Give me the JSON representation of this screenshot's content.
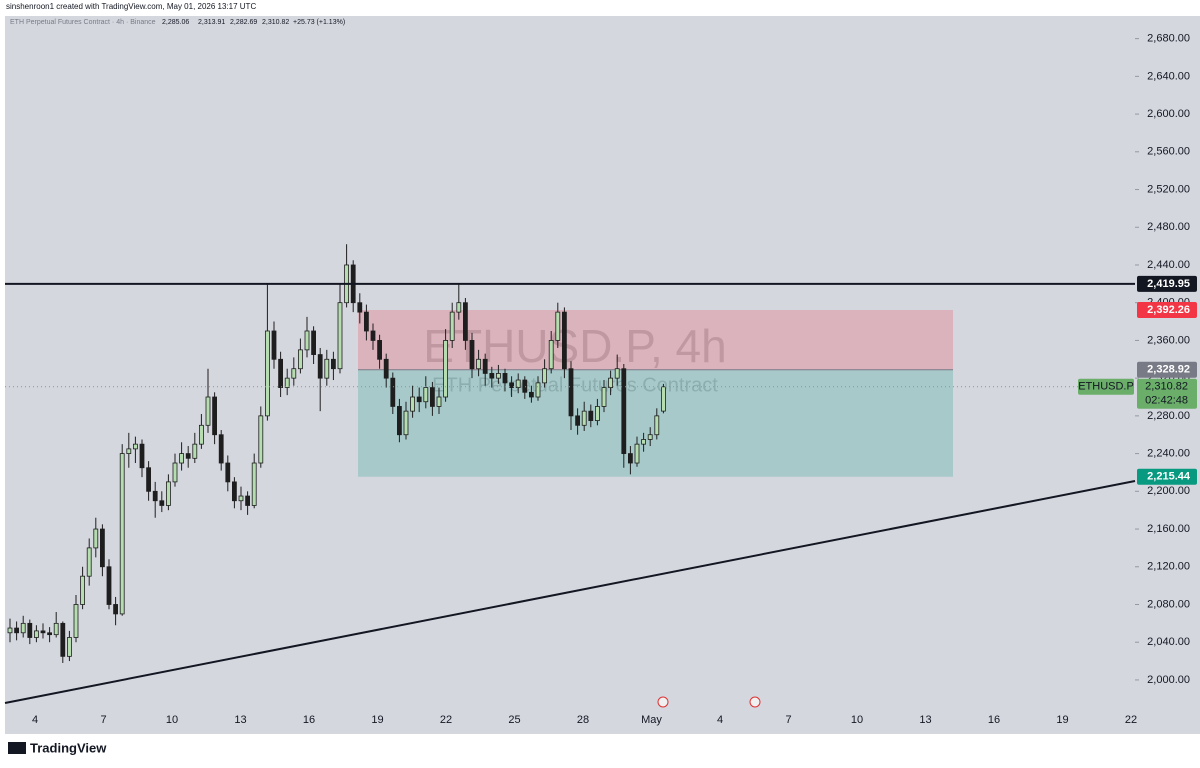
{
  "chart_data": {
    "type": "candlestick",
    "credit": "sinshenroon1 created with TradingView.com, May 01, 2026 13:17 UTC",
    "legend": {
      "name": "ETH Perpetual Futures Contract · 4h · Binance",
      "o": "2,285.06",
      "h": "2,313.91",
      "l": "2,282.69",
      "c": "2,310.82",
      "change": "+25.73 (+1.13%)"
    },
    "watermark": {
      "symbol": "ETHUSD.P, 4h",
      "description": "ETH Perpetual Futures Contract"
    },
    "brand": "TradingView",
    "ylim": [
      1966,
      2704
    ],
    "yticks": [
      {
        "value": 2000,
        "label": "2,000.00"
      },
      {
        "value": 2040,
        "label": "2,040.00"
      },
      {
        "value": 2080,
        "label": "2,080.00"
      },
      {
        "value": 2120,
        "label": "2,120.00"
      },
      {
        "value": 2160,
        "label": "2,160.00"
      },
      {
        "value": 2200,
        "label": "2,200.00"
      },
      {
        "value": 2240,
        "label": "2,240.00"
      },
      {
        "value": 2280,
        "label": "2,280.00"
      },
      {
        "value": 2320,
        "label": "2,320.00"
      },
      {
        "value": 2360,
        "label": "2,360.00"
      },
      {
        "value": 2400,
        "label": "2,400.00"
      },
      {
        "value": 2440,
        "label": "2,440.00"
      },
      {
        "value": 2480,
        "label": "2,480.00"
      },
      {
        "value": 2520,
        "label": "2,520.00"
      },
      {
        "value": 2560,
        "label": "2,560.00"
      },
      {
        "value": 2600,
        "label": "2,600.00"
      },
      {
        "value": 2640,
        "label": "2,640.00"
      },
      {
        "value": 2680,
        "label": "2,680.00"
      }
    ],
    "x_labels": [
      "4",
      "7",
      "10",
      "13",
      "16",
      "19",
      "22",
      "25",
      "28",
      "May",
      "4",
      "7",
      "10",
      "13",
      "16",
      "19",
      "22"
    ],
    "up_color": "#b5ddb0",
    "down_color": "#1e1e1e",
    "candles": [
      [
        2050,
        2065,
        2040,
        2055
      ],
      [
        2055,
        2062,
        2042,
        2050
      ],
      [
        2050,
        2068,
        2045,
        2060
      ],
      [
        2060,
        2064,
        2038,
        2045
      ],
      [
        2045,
        2058,
        2040,
        2052
      ],
      [
        2052,
        2060,
        2044,
        2050
      ],
      [
        2050,
        2056,
        2040,
        2048
      ],
      [
        2048,
        2072,
        2045,
        2060
      ],
      [
        2060,
        2062,
        2018,
        2025
      ],
      [
        2025,
        2052,
        2020,
        2045
      ],
      [
        2045,
        2090,
        2040,
        2080
      ],
      [
        2080,
        2120,
        2075,
        2110
      ],
      [
        2110,
        2150,
        2100,
        2140
      ],
      [
        2140,
        2172,
        2130,
        2160
      ],
      [
        2160,
        2165,
        2110,
        2120
      ],
      [
        2120,
        2128,
        2075,
        2080
      ],
      [
        2080,
        2088,
        2058,
        2070
      ],
      [
        2070,
        2250,
        2068,
        2240
      ],
      [
        2240,
        2262,
        2225,
        2245
      ],
      [
        2245,
        2258,
        2230,
        2250
      ],
      [
        2250,
        2255,
        2215,
        2225
      ],
      [
        2225,
        2232,
        2190,
        2200
      ],
      [
        2200,
        2210,
        2172,
        2190
      ],
      [
        2190,
        2200,
        2178,
        2185
      ],
      [
        2185,
        2218,
        2180,
        2210
      ],
      [
        2210,
        2240,
        2205,
        2230
      ],
      [
        2230,
        2252,
        2222,
        2240
      ],
      [
        2240,
        2248,
        2225,
        2235
      ],
      [
        2235,
        2262,
        2230,
        2250
      ],
      [
        2250,
        2282,
        2245,
        2270
      ],
      [
        2270,
        2330,
        2262,
        2300
      ],
      [
        2300,
        2305,
        2250,
        2260
      ],
      [
        2260,
        2265,
        2222,
        2230
      ],
      [
        2230,
        2238,
        2200,
        2210
      ],
      [
        2210,
        2215,
        2182,
        2190
      ],
      [
        2190,
        2205,
        2180,
        2195
      ],
      [
        2195,
        2200,
        2175,
        2185
      ],
      [
        2185,
        2240,
        2182,
        2230
      ],
      [
        2230,
        2290,
        2225,
        2280
      ],
      [
        2280,
        2420,
        2275,
        2370
      ],
      [
        2370,
        2380,
        2330,
        2340
      ],
      [
        2340,
        2348,
        2300,
        2310
      ],
      [
        2310,
        2330,
        2302,
        2320
      ],
      [
        2320,
        2342,
        2312,
        2330
      ],
      [
        2330,
        2362,
        2325,
        2350
      ],
      [
        2350,
        2385,
        2342,
        2370
      ],
      [
        2370,
        2375,
        2335,
        2345
      ],
      [
        2345,
        2352,
        2285,
        2320
      ],
      [
        2320,
        2350,
        2312,
        2340
      ],
      [
        2340,
        2348,
        2318,
        2330
      ],
      [
        2330,
        2420,
        2325,
        2400
      ],
      [
        2400,
        2462,
        2395,
        2440
      ],
      [
        2440,
        2445,
        2390,
        2400
      ],
      [
        2400,
        2410,
        2378,
        2390
      ],
      [
        2390,
        2398,
        2360,
        2370
      ],
      [
        2370,
        2378,
        2350,
        2360
      ],
      [
        2360,
        2366,
        2330,
        2340
      ],
      [
        2340,
        2346,
        2310,
        2320
      ],
      [
        2320,
        2326,
        2282,
        2290
      ],
      [
        2290,
        2298,
        2252,
        2260
      ],
      [
        2260,
        2295,
        2255,
        2285
      ],
      [
        2285,
        2312,
        2278,
        2300
      ],
      [
        2300,
        2310,
        2284,
        2295
      ],
      [
        2295,
        2322,
        2288,
        2310
      ],
      [
        2310,
        2316,
        2280,
        2290
      ],
      [
        2290,
        2310,
        2282,
        2300
      ],
      [
        2300,
        2372,
        2295,
        2360
      ],
      [
        2360,
        2400,
        2352,
        2390
      ],
      [
        2390,
        2420,
        2382,
        2400
      ],
      [
        2400,
        2405,
        2350,
        2360
      ],
      [
        2360,
        2368,
        2320,
        2330
      ],
      [
        2330,
        2350,
        2322,
        2340
      ],
      [
        2340,
        2346,
        2312,
        2325
      ],
      [
        2325,
        2332,
        2310,
        2320
      ],
      [
        2320,
        2334,
        2314,
        2325
      ],
      [
        2325,
        2330,
        2306,
        2315
      ],
      [
        2315,
        2322,
        2300,
        2310
      ],
      [
        2310,
        2325,
        2304,
        2318
      ],
      [
        2318,
        2322,
        2298,
        2305
      ],
      [
        2305,
        2312,
        2294,
        2300
      ],
      [
        2300,
        2322,
        2296,
        2315
      ],
      [
        2315,
        2340,
        2310,
        2330
      ],
      [
        2330,
        2370,
        2325,
        2360
      ],
      [
        2360,
        2400,
        2352,
        2390
      ],
      [
        2390,
        2395,
        2320,
        2330
      ],
      [
        2330,
        2338,
        2265,
        2280
      ],
      [
        2280,
        2288,
        2260,
        2270
      ],
      [
        2270,
        2295,
        2264,
        2285
      ],
      [
        2285,
        2292,
        2268,
        2275
      ],
      [
        2275,
        2298,
        2270,
        2290
      ],
      [
        2290,
        2318,
        2284,
        2310
      ],
      [
        2310,
        2328,
        2302,
        2320
      ],
      [
        2320,
        2345,
        2312,
        2330
      ],
      [
        2330,
        2335,
        2225,
        2240
      ],
      [
        2240,
        2248,
        2218,
        2230
      ],
      [
        2230,
        2258,
        2226,
        2250
      ],
      [
        2250,
        2262,
        2242,
        2255
      ],
      [
        2255,
        2268,
        2248,
        2260
      ],
      [
        2260,
        2288,
        2255,
        2280
      ],
      [
        2285.06,
        2313.91,
        2282.69,
        2310.82
      ]
    ],
    "hline": {
      "value": 2419.95,
      "label": "2,419.95",
      "color": "#131722"
    },
    "position": {
      "stop": {
        "value": 2392.26,
        "label": "2,392.26",
        "color": "#f23645"
      },
      "entry": {
        "value": 2328.92,
        "label": "2,328.92",
        "color": "#787b86"
      },
      "target": {
        "value": 2215.44,
        "label": "2,215.44",
        "color": "#089981"
      }
    },
    "last": {
      "value": 2310.82,
      "label": "2,310.82",
      "symbol": "ETHUSD.P",
      "countdown": "02:42:48",
      "color": "#6aae6a"
    }
  }
}
